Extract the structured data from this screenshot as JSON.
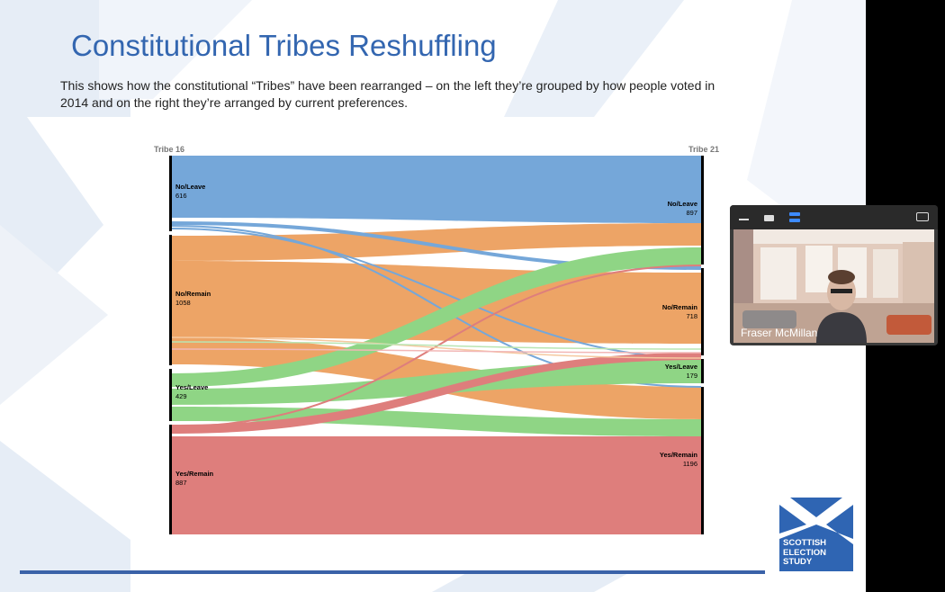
{
  "slide": {
    "title": "Constitutional Tribes Reshuffling",
    "subtitle": "This shows how the constitutional “Tribes” have been rearranged – on the left they’re grouped by how people voted in 2014 and on the right they’re arranged by current preferences."
  },
  "chart_data": {
    "type": "sankey",
    "left_header": "Tribe 16",
    "right_header": "Tribe 21",
    "left_nodes": [
      {
        "label": "No/Leave",
        "value": "616",
        "color": "#75a7d9"
      },
      {
        "label": "No/Remain",
        "value": "1058",
        "color": "#eda466"
      },
      {
        "label": "Yes/Leave",
        "value": "429",
        "color": "#8fd585"
      },
      {
        "label": "Yes/Remain",
        "value": "887",
        "color": "#de7e7c"
      }
    ],
    "right_nodes": [
      {
        "label": "No/Leave",
        "value": "897"
      },
      {
        "label": "No/Remain",
        "value": "718"
      },
      {
        "label": "Yes/Leave",
        "value": "179"
      },
      {
        "label": "Yes/Remain",
        "value": "1196"
      }
    ]
  },
  "logo": {
    "line1": "SCOTTISH",
    "line2": "ELECTION",
    "line3": "STUDY"
  },
  "video": {
    "participant_name": "Fraser McMillan"
  },
  "colors": {
    "title_blue": "#3366b0",
    "accent_blue": "#3a62a8",
    "no_leave": "#75a7d9",
    "no_remain": "#eda466",
    "yes_leave": "#8fd585",
    "yes_remain": "#de7e7c"
  }
}
